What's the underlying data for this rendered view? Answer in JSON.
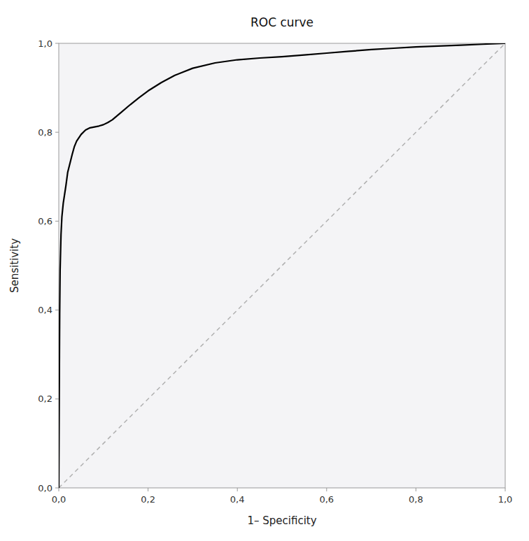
{
  "chart_data": {
    "type": "line",
    "title": "ROC curve",
    "xlabel": "1– Specificity",
    "ylabel": "Sensitivity",
    "xlim": [
      0.0,
      1.0
    ],
    "ylim": [
      0.0,
      1.0
    ],
    "xticks": [
      {
        "value": 0.0,
        "label": "0,0"
      },
      {
        "value": 0.2,
        "label": "0,2"
      },
      {
        "value": 0.4,
        "label": "0,4"
      },
      {
        "value": 0.6,
        "label": "0,6"
      },
      {
        "value": 0.8,
        "label": "0,8"
      },
      {
        "value": 1.0,
        "label": "1,0"
      }
    ],
    "yticks": [
      {
        "value": 0.0,
        "label": "0,0"
      },
      {
        "value": 0.2,
        "label": "0,2"
      },
      {
        "value": 0.4,
        "label": "0,4"
      },
      {
        "value": 0.6,
        "label": "0,6"
      },
      {
        "value": 0.8,
        "label": "0,8"
      },
      {
        "value": 1.0,
        "label": "1,0"
      }
    ],
    "grid": false,
    "series": [
      {
        "color": "#b0b0b0",
        "line_style": "dashed",
        "x": [
          0,
          1
        ],
        "values": [
          0,
          1
        ]
      },
      {
        "color": "#000000",
        "line_style": "solid",
        "x": [
          0.0,
          0.001,
          0.002,
          0.003,
          0.005,
          0.007,
          0.01,
          0.013,
          0.016,
          0.02,
          0.025,
          0.03,
          0.035,
          0.04,
          0.05,
          0.06,
          0.07,
          0.08,
          0.09,
          0.1,
          0.11,
          0.12,
          0.14,
          0.16,
          0.18,
          0.2,
          0.23,
          0.26,
          0.3,
          0.35,
          0.4,
          0.45,
          0.5,
          0.55,
          0.6,
          0.65,
          0.7,
          0.75,
          0.8,
          0.85,
          0.9,
          0.95,
          1.0
        ],
        "values": [
          0.0,
          0.2,
          0.39,
          0.49,
          0.57,
          0.61,
          0.64,
          0.66,
          0.68,
          0.71,
          0.73,
          0.75,
          0.768,
          0.78,
          0.795,
          0.805,
          0.81,
          0.812,
          0.814,
          0.817,
          0.822,
          0.828,
          0.845,
          0.862,
          0.878,
          0.893,
          0.912,
          0.928,
          0.944,
          0.956,
          0.963,
          0.967,
          0.97,
          0.974,
          0.978,
          0.982,
          0.986,
          0.989,
          0.992,
          0.994,
          0.996,
          0.998,
          1.0
        ]
      }
    ]
  }
}
